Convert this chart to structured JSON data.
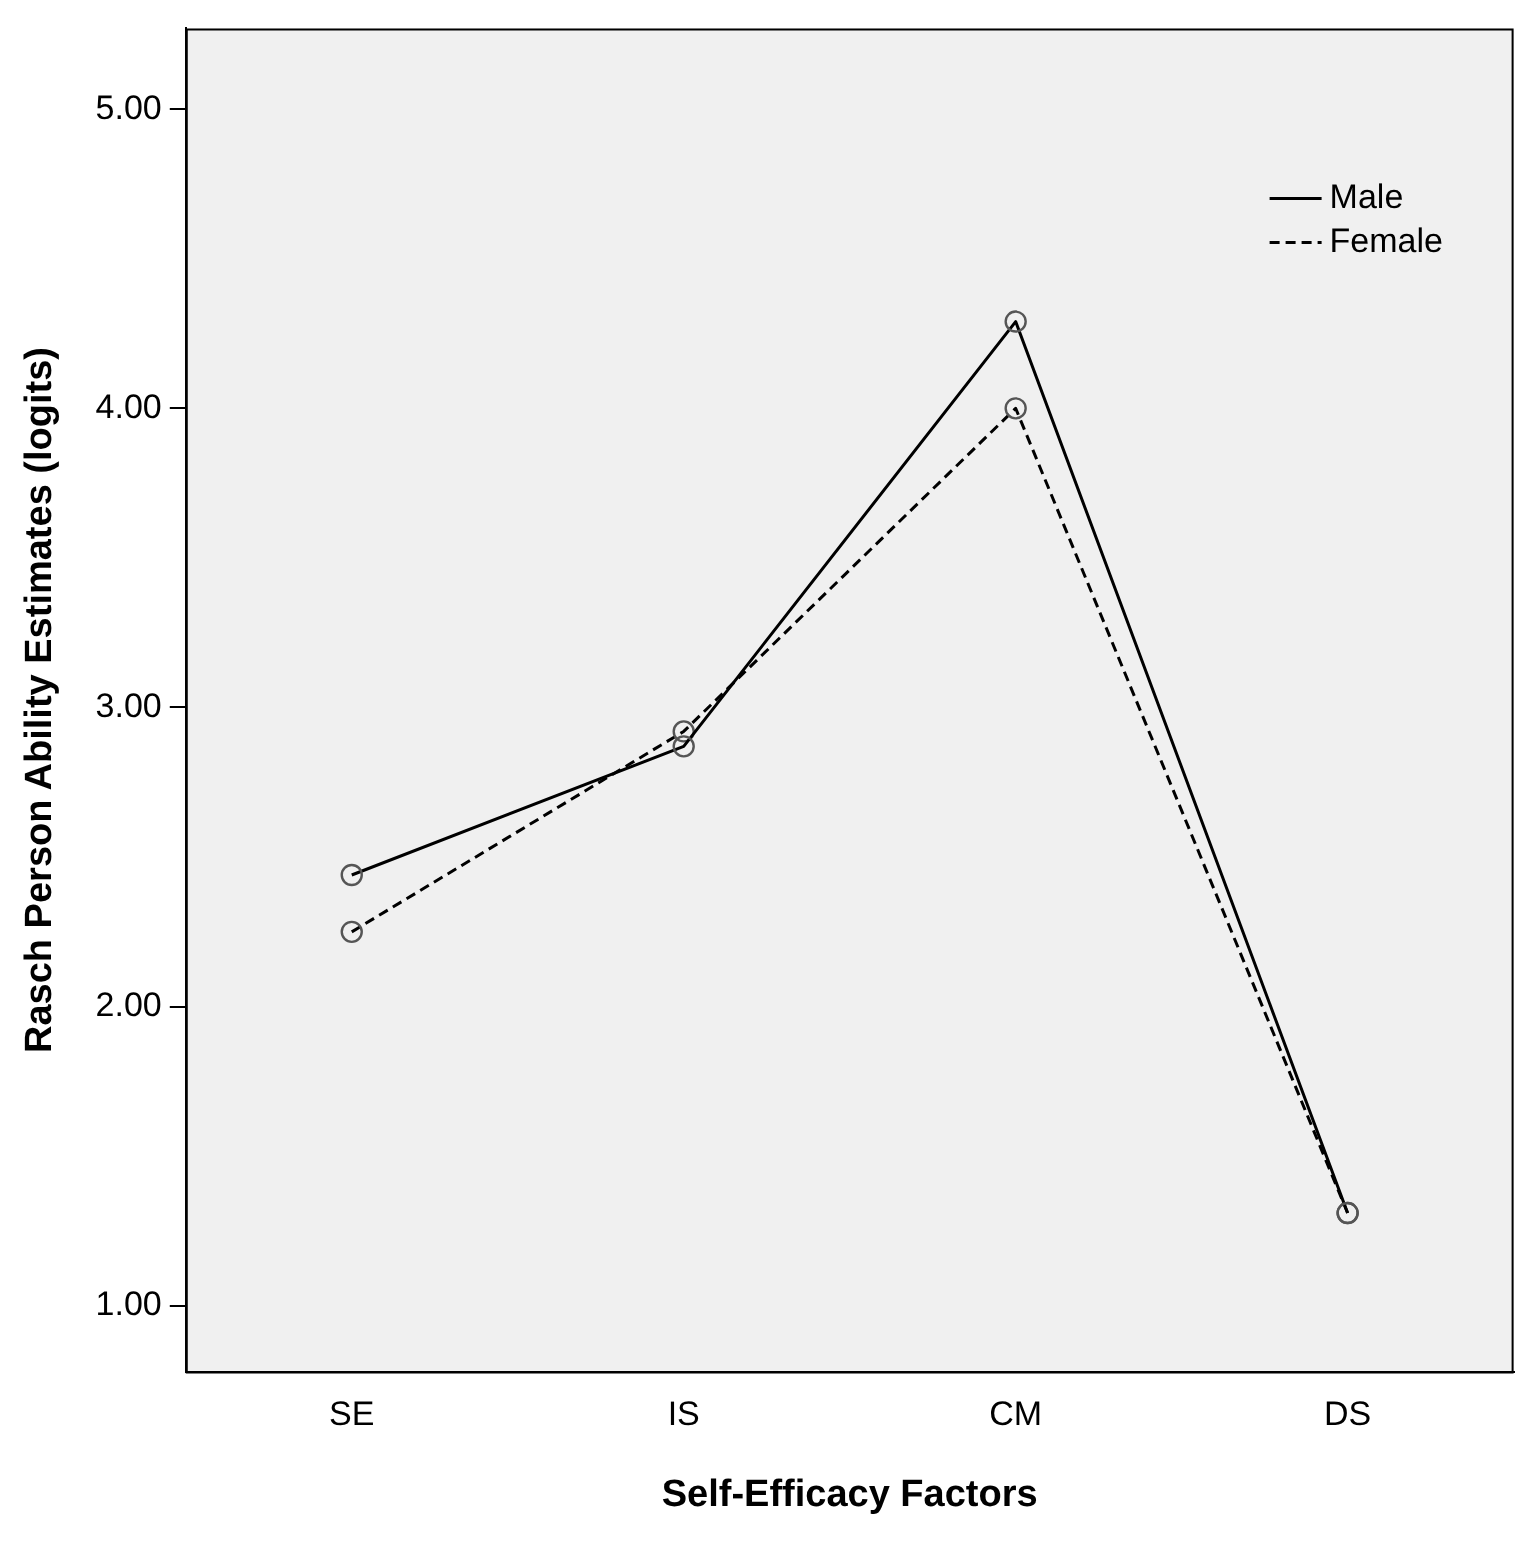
{
  "chart_data": {
    "type": "line",
    "xlabel": "Self-Efficacy Factors",
    "ylabel": "Rasch Person Ability Estimates (logits)",
    "categories": [
      "SE",
      "IS",
      "CM",
      "DS"
    ],
    "series": [
      {
        "name": "Male",
        "color": "#000000",
        "values": [
          2.44,
          2.87,
          4.29,
          1.31
        ],
        "line_style": "solid"
      },
      {
        "name": "Female",
        "color": "#000000",
        "values": [
          2.25,
          2.92,
          4.0,
          1.31
        ],
        "line_style": "dashed"
      }
    ],
    "ylim": [
      0.78,
      5.27
    ],
    "yticks": [
      {
        "value": 1,
        "label": "1.00"
      },
      {
        "value": 2,
        "label": "2.00"
      },
      {
        "value": 3,
        "label": "3.00"
      },
      {
        "value": 4,
        "label": "4.00"
      },
      {
        "value": 5,
        "label": "5.00"
      }
    ],
    "marker": "circle",
    "grid": false,
    "legend": "top right"
  }
}
